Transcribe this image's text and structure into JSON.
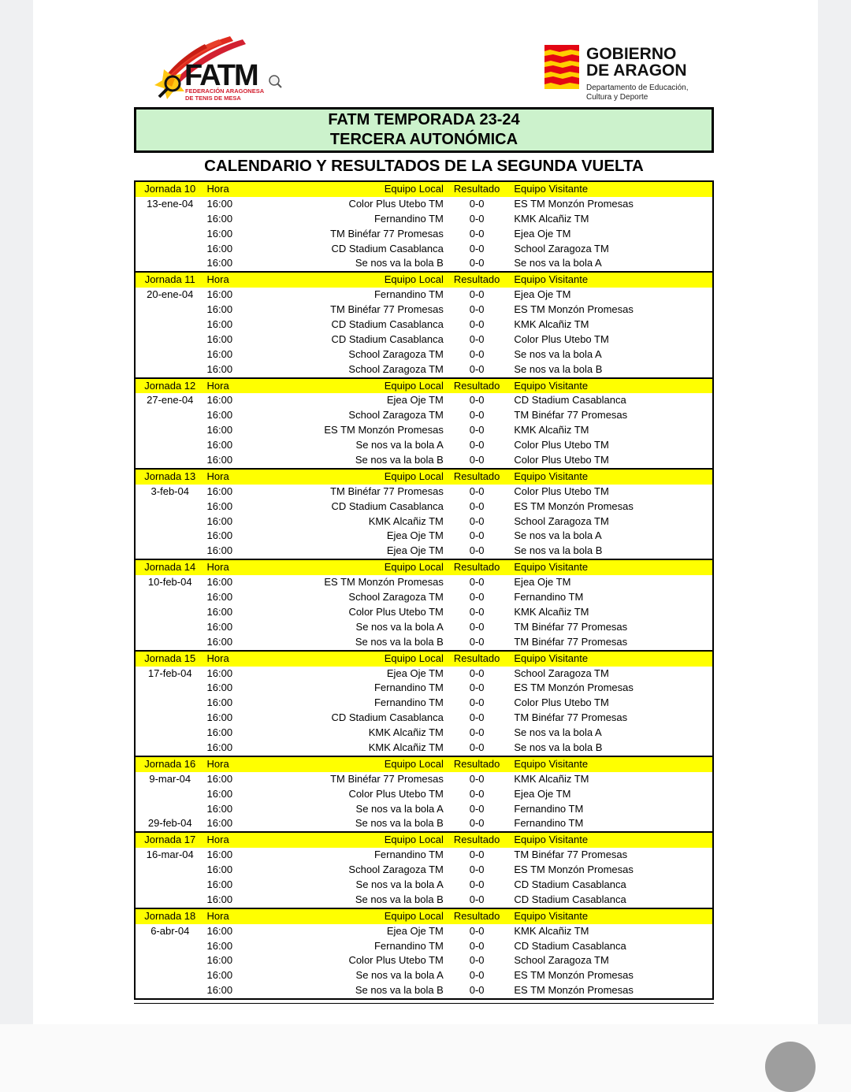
{
  "logos": {
    "fatm": {
      "name": "FATM",
      "subtitle1": "FEDERACIÓN ARAGONESA",
      "subtitle2": "DE TENIS DE MESA"
    },
    "gobierno": {
      "line1": "GOBIERNO",
      "line2": "DE ARAGON",
      "dept1": "Departamento de Educación,",
      "dept2": "Cultura y Deporte"
    }
  },
  "banner": {
    "line1": "FATM TEMPORADA 23-24",
    "line2": "TERCERA AUTONÓMICA"
  },
  "page_title": "CALENDARIO Y RESULTADOS DE LA SEGUNDA VUELTA",
  "colors": {
    "banner_green": "#ccf2cc",
    "header_yellow": "#ffff00",
    "fatm_red": "#d22030",
    "aragon_red": "#e30613",
    "aragon_yellow": "#ffcf00"
  },
  "table": {
    "columns": {
      "hora": "Hora",
      "local": "Equipo Local",
      "resultado": "Resultado",
      "visitante": "Equipo Visitante"
    },
    "jornadas": [
      {
        "label": "Jornada 10",
        "rows": [
          {
            "date": "13-ene-04",
            "time": "16:00",
            "local": "Color Plus Utebo TM",
            "result": "0-0",
            "visitor": "ES TM Monzón Promesas"
          },
          {
            "date": "",
            "time": "16:00",
            "local": "Fernandino TM",
            "result": "0-0",
            "visitor": "KMK Alcañiz TM"
          },
          {
            "date": "",
            "time": "16:00",
            "local": "TM Binéfar 77 Promesas",
            "result": "0-0",
            "visitor": "Ejea Oje TM"
          },
          {
            "date": "",
            "time": "16:00",
            "local": "CD Stadium Casablanca",
            "result": "0-0",
            "visitor": "School Zaragoza TM"
          },
          {
            "date": "",
            "time": "16:00",
            "local": "Se nos va la bola B",
            "result": "0-0",
            "visitor": "Se nos va la bola A"
          }
        ]
      },
      {
        "label": "Jornada 11",
        "rows": [
          {
            "date": "20-ene-04",
            "time": "16:00",
            "local": "Fernandino TM",
            "result": "0-0",
            "visitor": "Ejea Oje TM"
          },
          {
            "date": "",
            "time": "16:00",
            "local": "TM Binéfar 77 Promesas",
            "result": "0-0",
            "visitor": "ES TM Monzón Promesas"
          },
          {
            "date": "",
            "time": "16:00",
            "local": "CD Stadium Casablanca",
            "result": "0-0",
            "visitor": "KMK Alcañiz TM"
          },
          {
            "date": "",
            "time": "16:00",
            "local": "CD Stadium Casablanca",
            "result": "0-0",
            "visitor": "Color Plus Utebo TM"
          },
          {
            "date": "",
            "time": "16:00",
            "local": "School Zaragoza TM",
            "result": "0-0",
            "visitor": "Se nos va la bola A"
          },
          {
            "date": "",
            "time": "16:00",
            "local": "School Zaragoza TM",
            "result": "0-0",
            "visitor": "Se nos va la bola B"
          }
        ]
      },
      {
        "label": "Jornada 12",
        "rows": [
          {
            "date": "27-ene-04",
            "time": "16:00",
            "local": "Ejea Oje TM",
            "result": "0-0",
            "visitor": "CD Stadium Casablanca"
          },
          {
            "date": "",
            "time": "16:00",
            "local": "School Zaragoza TM",
            "result": "0-0",
            "visitor": "TM Binéfar 77 Promesas"
          },
          {
            "date": "",
            "time": "16:00",
            "local": "ES TM Monzón Promesas",
            "result": "0-0",
            "visitor": "KMK Alcañiz TM"
          },
          {
            "date": "",
            "time": "16:00",
            "local": "Se nos va la bola A",
            "result": "0-0",
            "visitor": "Color Plus Utebo TM"
          },
          {
            "date": "",
            "time": "16:00",
            "local": "Se nos va la bola B",
            "result": "0-0",
            "visitor": "Color Plus Utebo TM"
          }
        ]
      },
      {
        "label": "Jornada 13",
        "rows": [
          {
            "date": "3-feb-04",
            "time": "16:00",
            "local": "TM Binéfar 77 Promesas",
            "result": "0-0",
            "visitor": "Color Plus Utebo TM"
          },
          {
            "date": "",
            "time": "16:00",
            "local": "CD Stadium Casablanca",
            "result": "0-0",
            "visitor": "ES TM Monzón Promesas"
          },
          {
            "date": "",
            "time": "16:00",
            "local": "KMK Alcañiz TM",
            "result": "0-0",
            "visitor": "School Zaragoza TM"
          },
          {
            "date": "",
            "time": "16:00",
            "local": "Ejea Oje TM",
            "result": "0-0",
            "visitor": "Se nos va la bola A"
          },
          {
            "date": "",
            "time": "16:00",
            "local": "Ejea Oje TM",
            "result": "0-0",
            "visitor": "Se nos va la bola B"
          }
        ]
      },
      {
        "label": "Jornada 14",
        "rows": [
          {
            "date": "10-feb-04",
            "time": "16:00",
            "local": "ES TM Monzón Promesas",
            "result": "0-0",
            "visitor": "Ejea Oje TM"
          },
          {
            "date": "",
            "time": "16:00",
            "local": "School Zaragoza TM",
            "result": "0-0",
            "visitor": "Fernandino TM"
          },
          {
            "date": "",
            "time": "16:00",
            "local": "Color Plus Utebo TM",
            "result": "0-0",
            "visitor": "KMK Alcañiz TM"
          },
          {
            "date": "",
            "time": "16:00",
            "local": "Se nos va la bola A",
            "result": "0-0",
            "visitor": "TM Binéfar 77 Promesas"
          },
          {
            "date": "",
            "time": "16:00",
            "local": "Se nos va la bola B",
            "result": "0-0",
            "visitor": "TM Binéfar 77 Promesas"
          }
        ]
      },
      {
        "label": "Jornada 15",
        "rows": [
          {
            "date": "17-feb-04",
            "time": "16:00",
            "local": "Ejea Oje TM",
            "result": "0-0",
            "visitor": "School Zaragoza TM"
          },
          {
            "date": "",
            "time": "16:00",
            "local": "Fernandino TM",
            "result": "0-0",
            "visitor": "ES TM Monzón Promesas"
          },
          {
            "date": "",
            "time": "16:00",
            "local": "Fernandino TM",
            "result": "0-0",
            "visitor": "Color Plus Utebo TM"
          },
          {
            "date": "",
            "time": "16:00",
            "local": "CD Stadium Casablanca",
            "result": "0-0",
            "visitor": "TM Binéfar 77 Promesas"
          },
          {
            "date": "",
            "time": "16:00",
            "local": "KMK Alcañiz TM",
            "result": "0-0",
            "visitor": "Se nos va la bola A"
          },
          {
            "date": "",
            "time": "16:00",
            "local": "KMK Alcañiz TM",
            "result": "0-0",
            "visitor": "Se nos va la bola B"
          }
        ]
      },
      {
        "label": "Jornada 16",
        "rows": [
          {
            "date": "9-mar-04",
            "time": "16:00",
            "local": "TM Binéfar 77 Promesas",
            "result": "0-0",
            "visitor": "KMK Alcañiz TM"
          },
          {
            "date": "",
            "time": "16:00",
            "local": "Color Plus Utebo TM",
            "result": "0-0",
            "visitor": "Ejea Oje TM"
          },
          {
            "date": "",
            "time": "16:00",
            "local": "Se nos va la bola A",
            "result": "0-0",
            "visitor": "Fernandino TM"
          },
          {
            "date": "29-feb-04",
            "time": "16:00",
            "local": "Se nos va la bola B",
            "result": "0-0",
            "visitor": "Fernandino TM"
          }
        ]
      },
      {
        "label": "Jornada 17",
        "rows": [
          {
            "date": "16-mar-04",
            "time": "16:00",
            "local": "Fernandino TM",
            "result": "0-0",
            "visitor": "TM Binéfar 77 Promesas"
          },
          {
            "date": "",
            "time": "16:00",
            "local": "School Zaragoza TM",
            "result": "0-0",
            "visitor": "ES TM Monzón Promesas"
          },
          {
            "date": "",
            "time": "16:00",
            "local": "Se nos va la bola A",
            "result": "0-0",
            "visitor": "CD Stadium Casablanca"
          },
          {
            "date": "",
            "time": "16:00",
            "local": "Se nos va la bola B",
            "result": "0-0",
            "visitor": "CD Stadium Casablanca"
          }
        ]
      },
      {
        "label": "Jornada 18",
        "rows": [
          {
            "date": "6-abr-04",
            "time": "16:00",
            "local": "Ejea Oje TM",
            "result": "0-0",
            "visitor": "KMK Alcañiz TM"
          },
          {
            "date": "",
            "time": "16:00",
            "local": "Fernandino TM",
            "result": "0-0",
            "visitor": "CD Stadium Casablanca"
          },
          {
            "date": "",
            "time": "16:00",
            "local": "Color Plus Utebo TM",
            "result": "0-0",
            "visitor": "School Zaragoza TM"
          },
          {
            "date": "",
            "time": "16:00",
            "local": "Se nos va la bola A",
            "result": "0-0",
            "visitor": "ES TM Monzón Promesas"
          },
          {
            "date": "",
            "time": "16:00",
            "local": "Se nos va la bola B",
            "result": "0-0",
            "visitor": "ES TM Monzón Promesas"
          }
        ]
      }
    ]
  }
}
